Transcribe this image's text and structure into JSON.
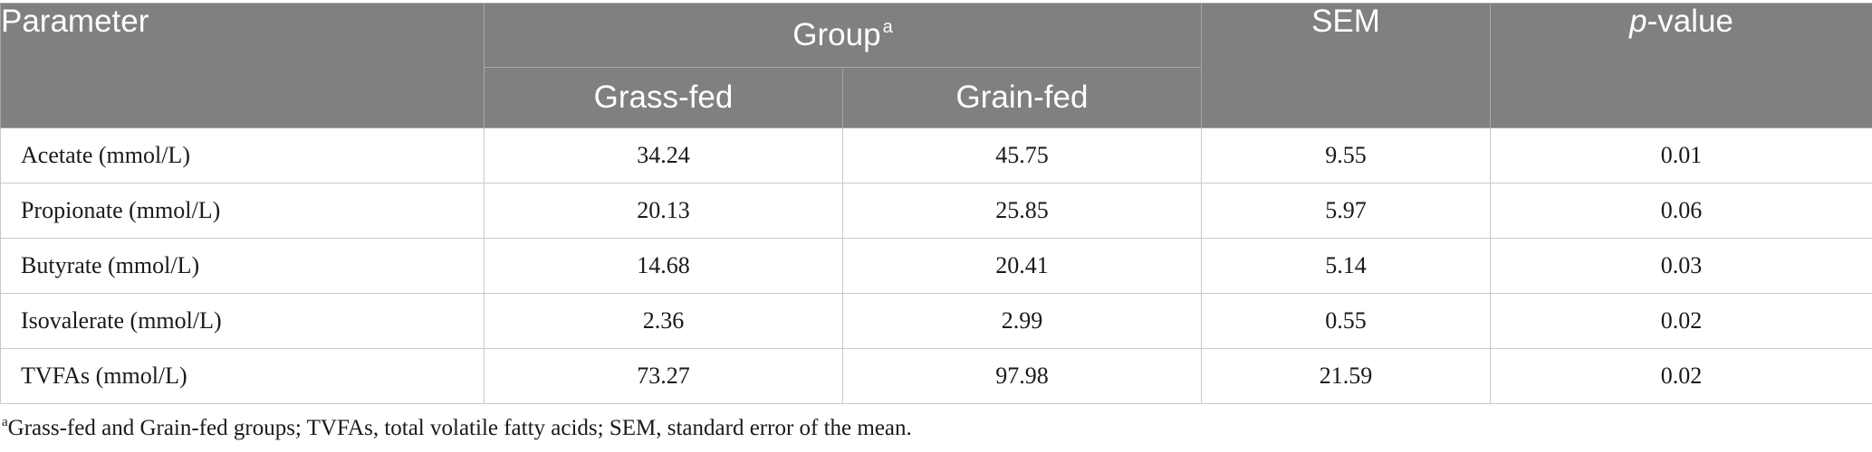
{
  "table": {
    "headers": {
      "parameter": "Parameter",
      "group": "Group",
      "group_sup": "a",
      "grass_fed": "Grass-fed",
      "grain_fed": "Grain-fed",
      "sem": "SEM",
      "p_italic": "p",
      "p_rest": "-value"
    },
    "rows": [
      {
        "parameter": "Acetate (mmol/L)",
        "grass_fed": "34.24",
        "grain_fed": "45.75",
        "sem": "9.55",
        "p_value": "0.01"
      },
      {
        "parameter": "Propionate (mmol/L)",
        "grass_fed": "20.13",
        "grain_fed": "25.85",
        "sem": "5.97",
        "p_value": "0.06"
      },
      {
        "parameter": "Butyrate (mmol/L)",
        "grass_fed": "14.68",
        "grain_fed": "20.41",
        "sem": "5.14",
        "p_value": "0.03"
      },
      {
        "parameter": "Isovalerate (mmol/L)",
        "grass_fed": "2.36",
        "grain_fed": "2.99",
        "sem": "0.55",
        "p_value": "0.02"
      },
      {
        "parameter": "TVFAs (mmol/L)",
        "grass_fed": "73.27",
        "grain_fed": "97.98",
        "sem": "21.59",
        "p_value": "0.02"
      }
    ]
  },
  "footnote": {
    "sup": "a",
    "text": "Grass-fed and Grain-fed groups; TVFAs, total volatile fatty acids; SEM, standard error of the mean."
  },
  "colors": {
    "header_bg": "#808080",
    "header_text": "#ffffff",
    "body_text": "#1a1a1a",
    "grid_line": "#c9c9c9"
  }
}
